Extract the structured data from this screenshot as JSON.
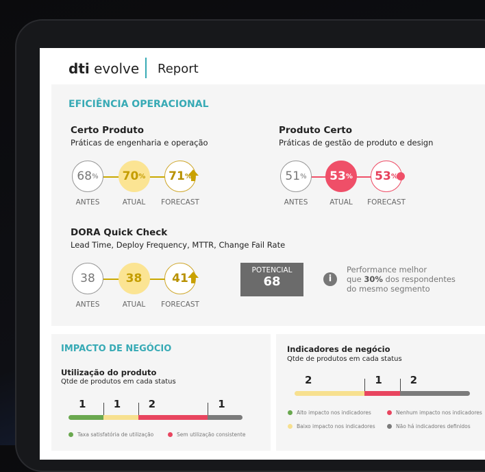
{
  "header": {
    "logo_mark": "dti",
    "logo_text": "evolve",
    "page": "Report"
  },
  "efficiency": {
    "title": "EFICIÊNCIA OPERACIONAL",
    "cards": [
      {
        "title": "Certo Produto",
        "subtitle": "Práticas de engenharia e operação",
        "metrics": [
          {
            "value": "68",
            "unit": "%",
            "label": "ANTES"
          },
          {
            "value": "70",
            "unit": "%",
            "label": "ATUAL"
          },
          {
            "value": "71",
            "unit": "%",
            "label": "FORECAST"
          }
        ]
      },
      {
        "title": "Produto Certo",
        "subtitle": "Práticas de gestão de produto e design",
        "metrics": [
          {
            "value": "51",
            "unit": "%",
            "label": "ANTES"
          },
          {
            "value": "53",
            "unit": "%",
            "label": "ATUAL"
          },
          {
            "value": "53",
            "unit": "%",
            "label": "FORECAST"
          }
        ]
      },
      {
        "title": "DORA Quick Check",
        "subtitle": "Lead Time, Deploy Frequency, MTTR, Change Fail Rate",
        "metrics": [
          {
            "value": "38",
            "label": "ANTES"
          },
          {
            "value": "38",
            "label": "ATUAL"
          },
          {
            "value": "41",
            "label": "FORECAST"
          }
        ]
      }
    ],
    "potential": {
      "label": "POTENCIAL",
      "value": "68"
    },
    "note": {
      "line1": "Performance melhor",
      "line2_pre": "que ",
      "line2_bold": "30%",
      "line2_post": " dos respondentes",
      "line3": "do mesmo segmento"
    }
  },
  "impact": {
    "title": "IMPACTO DE NEGÓCIO",
    "usage": {
      "title": "Utilização do produto",
      "subtitle": "Qtde de produtos em cada status",
      "segments": [
        {
          "value": 1,
          "color": "#6aa84f"
        },
        {
          "value": 1,
          "color": "#f7e08f"
        },
        {
          "value": 2,
          "color": "#e8455f"
        },
        {
          "value": 1,
          "color": "#7b7b7b"
        }
      ],
      "legend": [
        {
          "label": "Taxa satisfatória de utilização",
          "color": "#6aa84f"
        },
        {
          "label": "Sem utilização consistente",
          "color": "#e8455f"
        }
      ]
    },
    "indicators": {
      "title": "Indicadores de negócio",
      "subtitle": "Qtde de produtos em cada status",
      "segments": [
        {
          "value": 2,
          "color": "#f7e08f"
        },
        {
          "value": 1,
          "color": "#e8455f"
        },
        {
          "value": 2,
          "color": "#7b7b7b"
        }
      ],
      "legend": [
        {
          "label": "Alto impacto nos indicadores",
          "color": "#6aa84f"
        },
        {
          "label": "Nenhum impacto nos indicadores",
          "color": "#e8455f"
        },
        {
          "label": "Baixo impacto nos indicadores",
          "color": "#f7e08f"
        },
        {
          "label": "Não há indicadores definidos",
          "color": "#7b7b7b"
        }
      ]
    }
  }
}
